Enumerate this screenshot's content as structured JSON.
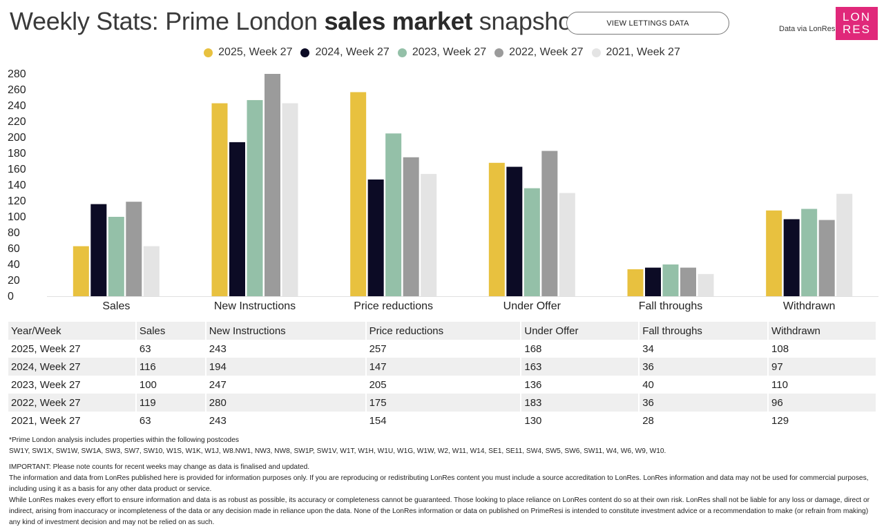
{
  "header": {
    "title_pre": "Weekly Stats: Prime London ",
    "title_bold": "sales market",
    "title_post": " snapshot",
    "view_button": "VIEW LETTINGS DATA",
    "data_via": "Data via LonRes",
    "logo_line1": "LON",
    "logo_line2": "RES"
  },
  "chart_data": {
    "type": "bar",
    "title": "Weekly Stats: Prime London sales market snapshot",
    "xlabel": "",
    "ylabel": "",
    "ylim": [
      0,
      280
    ],
    "yticks": [
      0,
      20,
      40,
      60,
      80,
      100,
      120,
      140,
      160,
      180,
      200,
      220,
      240,
      260,
      280
    ],
    "legend_position": "top-center",
    "categories": [
      "Sales",
      "New Instructions",
      "Price reductions",
      "Under Offer",
      "Fall throughs",
      "Withdrawn"
    ],
    "series": [
      {
        "name": "2025, Week 27",
        "color": "#e8c13f",
        "values": [
          63,
          243,
          257,
          168,
          34,
          108
        ]
      },
      {
        "name": "2024, Week 27",
        "color": "#0c0b25",
        "values": [
          116,
          194,
          147,
          163,
          36,
          97
        ]
      },
      {
        "name": "2023, Week 27",
        "color": "#94c0a8",
        "values": [
          100,
          247,
          205,
          136,
          40,
          110
        ]
      },
      {
        "name": "2022, Week 27",
        "color": "#9b9b9b",
        "values": [
          119,
          280,
          175,
          183,
          36,
          96
        ]
      },
      {
        "name": "2021, Week 27",
        "color": "#e4e4e4",
        "values": [
          63,
          243,
          154,
          130,
          28,
          129
        ]
      }
    ]
  },
  "table": {
    "headers": [
      "Year/Week",
      "Sales",
      "New Instructions",
      "Price reductions",
      "Under Offer",
      "Fall throughs",
      "Withdrawn"
    ],
    "rows": [
      [
        "2025, Week 27",
        "63",
        "243",
        "257",
        "168",
        "34",
        "108"
      ],
      [
        "2024, Week 27",
        "116",
        "194",
        "147",
        "163",
        "36",
        "97"
      ],
      [
        "2023, Week 27",
        "100",
        "247",
        "205",
        "136",
        "40",
        "110"
      ],
      [
        "2022, Week 27",
        "119",
        "280",
        "175",
        "183",
        "36",
        "96"
      ],
      [
        "2021, Week 27",
        "63",
        "243",
        "154",
        "130",
        "28",
        "129"
      ]
    ]
  },
  "notes": {
    "postcodes_intro": "*Prime London analysis includes properties within the following postcodes",
    "postcodes": "SW1Y, SW1X, SW1W, SW1A, SW3, SW7, SW10, W1S, W1K, W1J, W8.NW1, NW3, NW8, SW1P, SW1V, W1T, W1H, W1U, W1G, W1W, W2, W11, W14, SE1, SE11, SW4, SW5, SW6, SW11, W4, W6, W9, W10.",
    "important": "IMPORTANT: Please note counts for recent weeks may change as data is finalised and updated.",
    "disclaimer1": "The information and data from LonRes published here is provided for information purposes only. If you are reproducing or redistributing LonRes content you must include a source accreditation to LonRes. LonRes information and data may not be used for commercial purposes, including using it as a basis for any other data product or service.",
    "disclaimer2": "While LonRes makes every effort to ensure information and data is as robust as possible, its accuracy or completeness cannot be guaranteed. Those looking to place reliance on LonRes content do so at their own risk. LonRes shall not be liable for any loss or damage, direct or indirect, arising from inaccuracy or incompleteness of the data or any decision made in reliance upon the data. None of the LonRes information or data on published on PrimeResi is intended to constitute investment advice or a recommendation to make (or refrain from making) any kind of investment decision and may not be relied on as such."
  }
}
